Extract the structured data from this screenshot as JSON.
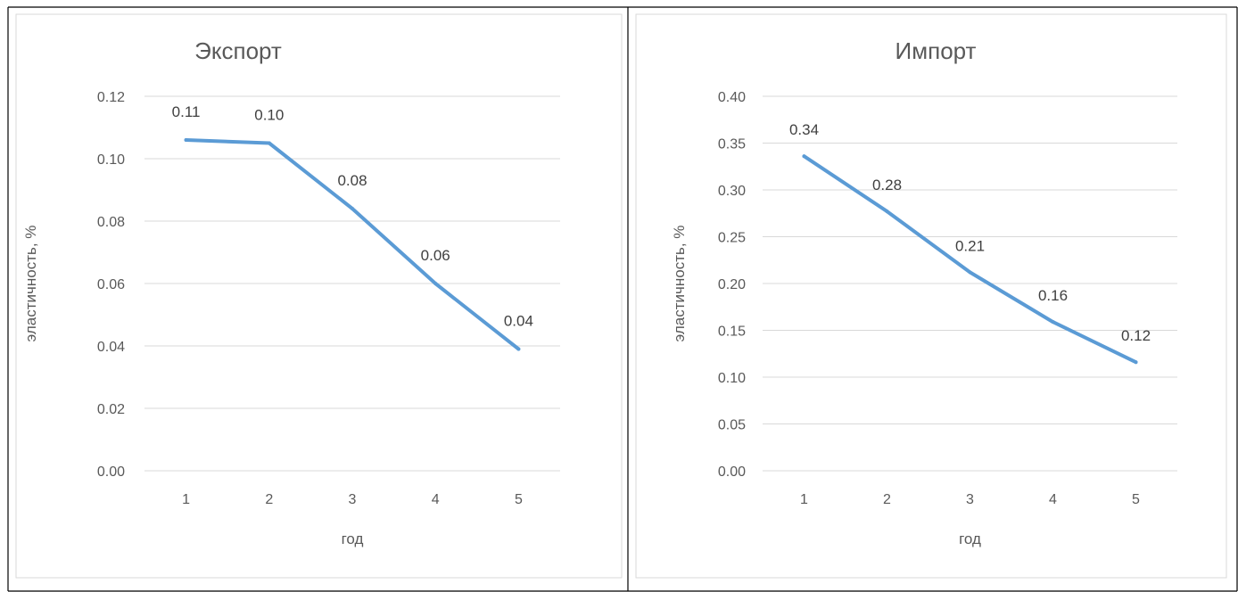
{
  "page": {
    "top_fragment": ""
  },
  "chart_data": [
    {
      "type": "line",
      "title": "Экспорт",
      "xlabel": "год",
      "ylabel": "эластичность, %",
      "categories": [
        "1",
        "2",
        "3",
        "4",
        "5"
      ],
      "values": [
        0.106,
        0.105,
        0.084,
        0.06,
        0.039
      ],
      "data_labels": [
        "0.11",
        "0.10",
        "0.08",
        "0.06",
        "0.04"
      ],
      "ylim": [
        0,
        0.12
      ],
      "yticks": [
        "0.00",
        "0.02",
        "0.04",
        "0.06",
        "0.08",
        "0.10",
        "0.12"
      ],
      "grid": true,
      "line_color": "#5b9bd5"
    },
    {
      "type": "line",
      "title": "Импорт",
      "xlabel": "год",
      "ylabel": "эластичность, %",
      "categories": [
        "1",
        "2",
        "3",
        "4",
        "5"
      ],
      "values": [
        0.336,
        0.277,
        0.212,
        0.159,
        0.116
      ],
      "data_labels": [
        "0.34",
        "0.28",
        "0.21",
        "0.16",
        "0.12"
      ],
      "ylim": [
        0,
        0.4
      ],
      "yticks": [
        "0.00",
        "0.05",
        "0.10",
        "0.15",
        "0.20",
        "0.25",
        "0.30",
        "0.35",
        "0.40"
      ],
      "grid": true,
      "line_color": "#5b9bd5"
    }
  ]
}
